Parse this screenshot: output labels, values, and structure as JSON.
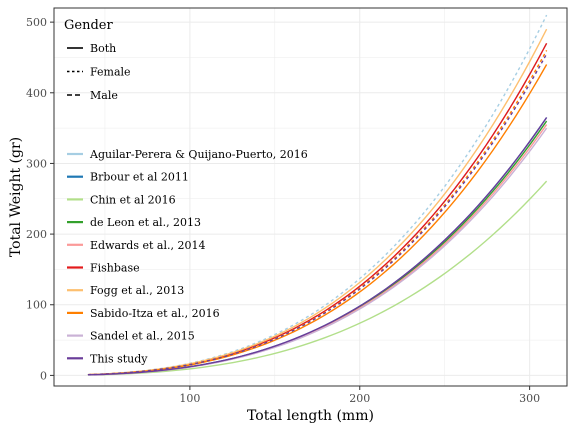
{
  "chart_data": {
    "type": "line",
    "xlabel": "Total length (mm)",
    "ylabel": "Total Weight (gr)",
    "xlim": [
      20,
      322
    ],
    "ylim": [
      -15,
      520
    ],
    "x_ticks": [
      100,
      200,
      300
    ],
    "y_ticks": [
      0,
      100,
      200,
      300,
      400,
      500
    ],
    "x_tick_labels": [
      "100",
      "200",
      "300"
    ],
    "y_tick_labels": [
      "0",
      "100",
      "200",
      "300",
      "400",
      "500"
    ],
    "grid": true,
    "legend": {
      "position": "top-left",
      "title": "Gender",
      "linetypes": [
        "Both",
        "Female",
        "Male"
      ],
      "sources": [
        "Aguilar-Perera & Quijano-Puerto, 2016",
        "Brbour et al 2011",
        "Chin et al 2016",
        "de Leon et al., 2013",
        "Edwards et al., 2014",
        "Fishbase",
        "Fogg et al., 2013",
        "Sabido-Itza et al., 2016",
        "Sandel et al., 2015",
        "This study"
      ]
    },
    "series": [
      {
        "source": "Aguilar-Perera & Quijano-Puerto, 2016",
        "linetype": "Female",
        "color": "#a6cee3",
        "x": [
          40,
          310
        ],
        "y": [
          1,
          510
        ]
      },
      {
        "source": "Aguilar-Perera & Quijano-Puerto, 2016",
        "linetype": "Male",
        "color": "#a6cee3",
        "x": [
          40,
          310
        ],
        "y": [
          1,
          470
        ]
      },
      {
        "source": "Brbour et al 2011",
        "linetype": "Both",
        "color": "#1f78b4",
        "x": [
          40,
          310
        ],
        "y": [
          1,
          365
        ]
      },
      {
        "source": "Chin et al 2016",
        "linetype": "Both",
        "color": "#b2df8a",
        "x": [
          40,
          310
        ],
        "y": [
          1,
          275
        ]
      },
      {
        "source": "de Leon et al., 2013",
        "linetype": "Both",
        "color": "#33a02c",
        "x": [
          40,
          310
        ],
        "y": [
          1,
          360
        ]
      },
      {
        "source": "Edwards et al., 2014",
        "linetype": "Both",
        "color": "#fb9a99",
        "x": [
          40,
          310
        ],
        "y": [
          1,
          355
        ]
      },
      {
        "source": "Fishbase",
        "linetype": "Both",
        "color": "#e31a1c",
        "x": [
          40,
          310
        ],
        "y": [
          1,
          470
        ]
      },
      {
        "source": "Fogg et al., 2013",
        "linetype": "Both",
        "color": "#fdbf6f",
        "x": [
          40,
          310
        ],
        "y": [
          1,
          490
        ]
      },
      {
        "source": "Sabido-Itza et al., 2016",
        "linetype": "Female",
        "color": "#ff7f00",
        "x": [
          40,
          310
        ],
        "y": [
          1,
          460
        ]
      },
      {
        "source": "Sabido-Itza et al., 2016",
        "linetype": "Both",
        "color": "#ff7f00",
        "x": [
          40,
          310
        ],
        "y": [
          1,
          440
        ]
      },
      {
        "source": "Sandel et al., 2015",
        "linetype": "Both",
        "color": "#cab2d6",
        "x": [
          40,
          310
        ],
        "y": [
          1,
          350
        ]
      },
      {
        "source": "This study",
        "linetype": "Female",
        "color": "#6a3d9a",
        "x": [
          40,
          310
        ],
        "y": [
          1,
          455
        ]
      },
      {
        "source": "This study",
        "linetype": "Both",
        "color": "#6a3d9a",
        "x": [
          40,
          310
        ],
        "y": [
          1,
          365
        ]
      }
    ]
  },
  "colors": {
    "Aguilar-Perera & Quijano-Puerto, 2016": "#a6cee3",
    "Brbour et al 2011": "#1f78b4",
    "Chin et al 2016": "#b2df8a",
    "de Leon et al., 2013": "#33a02c",
    "Edwards et al., 2014": "#fb9a99",
    "Fishbase": "#e31a1c",
    "Fogg et al., 2013": "#fdbf6f",
    "Sabido-Itza et al., 2016": "#ff7f00",
    "Sandel et al., 2015": "#cab2d6",
    "This study": "#6a3d9a",
    "grid": "#ebebeb",
    "panel_border": "#333333"
  }
}
